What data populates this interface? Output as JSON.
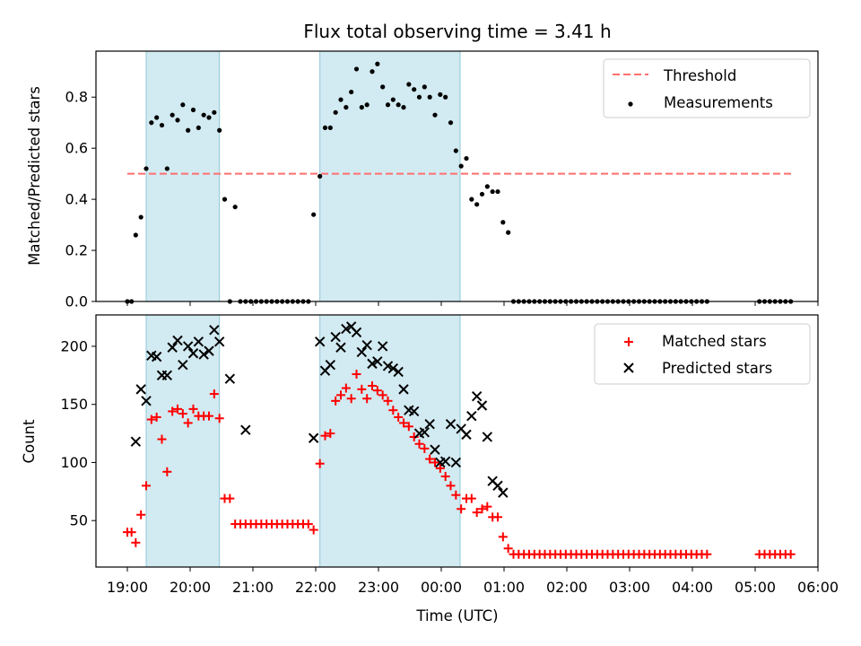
{
  "title": "Flux total observing time = 3.41 h",
  "colors": {
    "measurements": "#000000",
    "threshold": "#ff6f6f",
    "matched": "#ff0000",
    "predicted": "#000000",
    "shading": "#add8e6"
  },
  "chart_data": [
    {
      "type": "scatter",
      "panel": "top",
      "xlabel": "",
      "ylabel": "Matched/Predicted stars",
      "xlim": [
        "18:30",
        "06:00"
      ],
      "ylim": [
        0,
        0.98
      ],
      "yticks": [
        "0.0",
        "0.2",
        "0.4",
        "0.6",
        "0.8"
      ],
      "ytick_values": [
        0,
        0.2,
        0.4,
        0.6,
        0.8
      ],
      "threshold": {
        "name": "Threshold",
        "value": 0.5,
        "x_range": [
          "19:00",
          "05:35"
        ]
      },
      "shaded_intervals": [
        [
          "19:18",
          "20:28"
        ],
        [
          "22:04",
          "00:18"
        ]
      ],
      "legend": {
        "position": "upper right",
        "entries": [
          "Threshold",
          "Measurements"
        ]
      },
      "series": [
        {
          "name": "Measurements",
          "marker": "dot",
          "x": [
            "19:00",
            "19:04",
            "19:08",
            "19:13",
            "19:18",
            "19:23",
            "19:28",
            "19:33",
            "19:38",
            "19:43",
            "19:48",
            "19:53",
            "19:58",
            "20:03",
            "20:08",
            "20:13",
            "20:18",
            "20:23",
            "20:28",
            "20:33",
            "20:38",
            "20:43",
            "20:48",
            "20:53",
            "20:58",
            "21:03",
            "21:08",
            "21:13",
            "21:18",
            "21:23",
            "21:28",
            "21:33",
            "21:38",
            "21:43",
            "21:48",
            "21:53",
            "21:58",
            "22:04",
            "22:09",
            "22:14",
            "22:19",
            "22:24",
            "22:29",
            "22:34",
            "22:39",
            "22:44",
            "22:49",
            "22:54",
            "22:59",
            "23:04",
            "23:09",
            "23:14",
            "23:19",
            "23:24",
            "23:29",
            "23:34",
            "23:39",
            "23:44",
            "23:49",
            "23:54",
            "23:59",
            "00:04",
            "00:09",
            "00:14",
            "00:19",
            "00:24",
            "00:29",
            "00:34",
            "00:39",
            "00:44",
            "00:49",
            "00:54",
            "00:59",
            "01:04",
            "01:09",
            "01:14",
            "01:19",
            "01:24",
            "01:29",
            "01:34",
            "01:39",
            "01:44",
            "01:49",
            "01:54",
            "01:59",
            "02:04",
            "02:09",
            "02:14",
            "02:19",
            "02:24",
            "02:29",
            "02:34",
            "02:39",
            "02:44",
            "02:49",
            "02:54",
            "02:59",
            "03:04",
            "03:09",
            "03:14",
            "03:19",
            "03:24",
            "03:29",
            "03:34",
            "03:39",
            "03:44",
            "03:49",
            "03:54",
            "03:59",
            "04:04",
            "04:09",
            "04:14",
            "05:04",
            "05:09",
            "05:14",
            "05:19",
            "05:24",
            "05:29",
            "05:34"
          ],
          "y": [
            0.0,
            0.0,
            0.26,
            0.33,
            0.52,
            0.7,
            0.72,
            0.69,
            0.52,
            0.73,
            0.71,
            0.77,
            0.67,
            0.75,
            0.68,
            0.73,
            0.72,
            0.74,
            0.67,
            0.4,
            0.0,
            0.37,
            0.0,
            0.0,
            0.0,
            0.0,
            0.0,
            0.0,
            0.0,
            0.0,
            0.0,
            0.0,
            0.0,
            0.0,
            0.0,
            0.0,
            0.34,
            0.49,
            0.68,
            0.68,
            0.74,
            0.79,
            0.76,
            0.82,
            0.91,
            0.76,
            0.77,
            0.9,
            0.93,
            0.84,
            0.77,
            0.79,
            0.77,
            0.76,
            0.85,
            0.83,
            0.8,
            0.84,
            0.8,
            0.73,
            0.81,
            0.8,
            0.7,
            0.59,
            0.53,
            0.56,
            0.4,
            0.38,
            0.42,
            0.45,
            0.43,
            0.43,
            0.31,
            0.27,
            0.0,
            0.0,
            0.0,
            0.0,
            0.0,
            0.0,
            0.0,
            0.0,
            0.0,
            0.0,
            0.0,
            0.0,
            0.0,
            0.0,
            0.0,
            0.0,
            0.0,
            0.0,
            0.0,
            0.0,
            0.0,
            0.0,
            0.0,
            0.0,
            0.0,
            0.0,
            0.0,
            0.0,
            0.0,
            0.0,
            0.0,
            0.0,
            0.0,
            0.0,
            0.0,
            0.0,
            0.0,
            0.0,
            0.0,
            0.0,
            0.0,
            0.0,
            0.0,
            0.0,
            0.0
          ]
        }
      ]
    },
    {
      "type": "scatter",
      "panel": "bottom",
      "xlabel": "Time (UTC)",
      "ylabel": "Count",
      "xlim": [
        "18:30",
        "06:00"
      ],
      "ylim": [
        10,
        227
      ],
      "xticks": [
        "19:00",
        "20:00",
        "21:00",
        "22:00",
        "23:00",
        "00:00",
        "01:00",
        "02:00",
        "03:00",
        "04:00",
        "05:00",
        "06:00"
      ],
      "yticks": [
        "50",
        "100",
        "150",
        "200"
      ],
      "ytick_values": [
        50,
        100,
        150,
        200
      ],
      "shaded_intervals": [
        [
          "19:18",
          "20:28"
        ],
        [
          "22:04",
          "00:18"
        ]
      ],
      "legend": {
        "position": "upper right",
        "entries": [
          "Matched stars",
          "Predicted stars"
        ]
      },
      "series": [
        {
          "name": "Matched stars",
          "marker": "plus",
          "x": [
            "19:00",
            "19:04",
            "19:08",
            "19:13",
            "19:18",
            "19:23",
            "19:28",
            "19:33",
            "19:38",
            "19:43",
            "19:48",
            "19:53",
            "19:58",
            "20:03",
            "20:08",
            "20:13",
            "20:18",
            "20:23",
            "20:28",
            "20:33",
            "20:38",
            "20:43",
            "20:48",
            "20:53",
            "20:58",
            "21:03",
            "21:08",
            "21:13",
            "21:18",
            "21:23",
            "21:28",
            "21:33",
            "21:38",
            "21:43",
            "21:48",
            "21:53",
            "21:58",
            "22:04",
            "22:09",
            "22:14",
            "22:19",
            "22:24",
            "22:29",
            "22:34",
            "22:39",
            "22:44",
            "22:49",
            "22:54",
            "22:59",
            "23:04",
            "23:09",
            "23:14",
            "23:19",
            "23:24",
            "23:29",
            "23:34",
            "23:39",
            "23:44",
            "23:49",
            "23:54",
            "23:59",
            "00:04",
            "00:09",
            "00:14",
            "00:19",
            "00:24",
            "00:29",
            "00:34",
            "00:39",
            "00:44",
            "00:49",
            "00:54",
            "00:59",
            "01:04",
            "01:09",
            "01:14",
            "01:19",
            "01:24",
            "01:29",
            "01:34",
            "01:39",
            "01:44",
            "01:49",
            "01:54",
            "01:59",
            "02:04",
            "02:09",
            "02:14",
            "02:19",
            "02:24",
            "02:29",
            "02:34",
            "02:39",
            "02:44",
            "02:49",
            "02:54",
            "02:59",
            "03:04",
            "03:09",
            "03:14",
            "03:19",
            "03:24",
            "03:29",
            "03:34",
            "03:39",
            "03:44",
            "03:49",
            "03:54",
            "03:59",
            "04:04",
            "04:09",
            "04:14",
            "05:04",
            "05:09",
            "05:14",
            "05:19",
            "05:24",
            "05:29",
            "05:34"
          ],
          "y": [
            40,
            40,
            31,
            55,
            80,
            137,
            139,
            120,
            92,
            144,
            146,
            142,
            134,
            146,
            140,
            140,
            140,
            159,
            138,
            69,
            69,
            47,
            47,
            47,
            47,
            47,
            47,
            47,
            47,
            47,
            47,
            47,
            47,
            47,
            47,
            47,
            42,
            99,
            123,
            125,
            153,
            158,
            164,
            155,
            176,
            163,
            155,
            166,
            162,
            158,
            153,
            145,
            139,
            134,
            131,
            122,
            116,
            112,
            103,
            100,
            95,
            88,
            80,
            72,
            60,
            69,
            69,
            57,
            60,
            62,
            53,
            53,
            36,
            26,
            21,
            21,
            21,
            21,
            21,
            21,
            21,
            21,
            21,
            21,
            21,
            21,
            21,
            21,
            21,
            21,
            21,
            21,
            21,
            21,
            21,
            21,
            21,
            21,
            21,
            21,
            21,
            21,
            21,
            21,
            21,
            21,
            21,
            21,
            21,
            21,
            21,
            21,
            21,
            21,
            21,
            21,
            21,
            21,
            21
          ]
        },
        {
          "name": "Predicted stars",
          "marker": "cross",
          "x": [
            "19:08",
            "19:13",
            "19:18",
            "19:23",
            "19:28",
            "19:33",
            "19:38",
            "19:43",
            "19:48",
            "19:53",
            "19:58",
            "20:03",
            "20:08",
            "20:13",
            "20:18",
            "20:23",
            "20:28",
            "20:38",
            "20:53",
            "21:58",
            "22:04",
            "22:09",
            "22:14",
            "22:19",
            "22:24",
            "22:29",
            "22:34",
            "22:39",
            "22:44",
            "22:49",
            "22:54",
            "22:59",
            "23:04",
            "23:09",
            "23:14",
            "23:19",
            "23:24",
            "23:29",
            "23:34",
            "23:39",
            "23:44",
            "23:49",
            "23:54",
            "23:59",
            "00:04",
            "00:09",
            "00:14",
            "00:19",
            "00:24",
            "00:29",
            "00:34",
            "00:39",
            "00:44",
            "00:49",
            "00:54",
            "00:59"
          ],
          "y": [
            118,
            163,
            153,
            192,
            191,
            175,
            175,
            199,
            205,
            184,
            200,
            194,
            204,
            193,
            196,
            214,
            204,
            172,
            128,
            121,
            204,
            179,
            184,
            208,
            199,
            215,
            217,
            212,
            195,
            201,
            185,
            187,
            200,
            183,
            181,
            178,
            163,
            145,
            144,
            125,
            126,
            133,
            111,
            100,
            101,
            133,
            100,
            129,
            124,
            140,
            157,
            149,
            122,
            84,
            80,
            74
          ]
        }
      ]
    }
  ]
}
